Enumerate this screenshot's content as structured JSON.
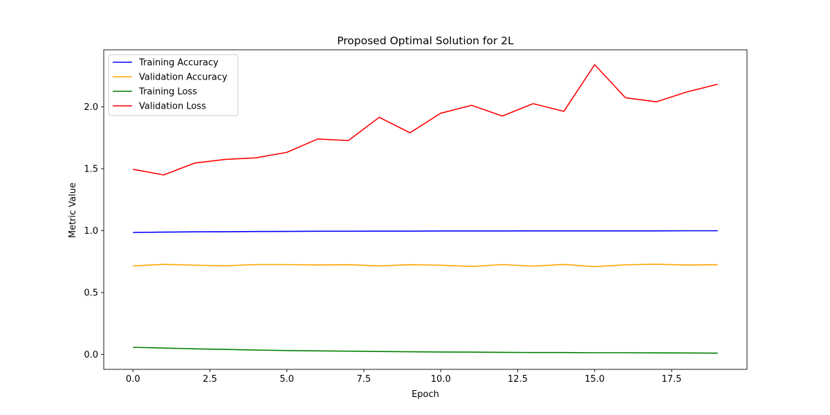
{
  "chart_data": {
    "type": "line",
    "title": "Proposed Optimal Solution for 2L",
    "xlabel": "Epoch",
    "ylabel": "Metric Value",
    "xlim": [
      -0.95,
      19.95
    ],
    "ylim": [
      -0.12,
      2.46
    ],
    "x_ticks": [
      0.0,
      2.5,
      5.0,
      7.5,
      10.0,
      12.5,
      15.0,
      17.5
    ],
    "x_tick_labels": [
      "0.0",
      "2.5",
      "5.0",
      "7.5",
      "10.0",
      "12.5",
      "15.0",
      "17.5"
    ],
    "y_ticks": [
      0.0,
      0.5,
      1.0,
      1.5,
      2.0
    ],
    "y_tick_labels": [
      "0.0",
      "0.5",
      "1.0",
      "1.5",
      "2.0"
    ],
    "grid": false,
    "legend_position": "top-left",
    "x": [
      0,
      1,
      2,
      3,
      4,
      5,
      6,
      7,
      8,
      9,
      10,
      11,
      12,
      13,
      14,
      15,
      16,
      17,
      18,
      19
    ],
    "series": [
      {
        "name": "Training Accuracy",
        "color": "#0000ff",
        "values": [
          0.985,
          0.988,
          0.99,
          0.991,
          0.993,
          0.994,
          0.995,
          0.995,
          0.996,
          0.996,
          0.997,
          0.997,
          0.997,
          0.998,
          0.998,
          0.998,
          0.998,
          0.998,
          0.999,
          0.999
        ]
      },
      {
        "name": "Validation Accuracy",
        "color": "#ffa500",
        "values": [
          0.715,
          0.728,
          0.721,
          0.716,
          0.726,
          0.726,
          0.723,
          0.725,
          0.715,
          0.725,
          0.721,
          0.711,
          0.726,
          0.713,
          0.727,
          0.709,
          0.724,
          0.729,
          0.722,
          0.725
        ]
      },
      {
        "name": "Training Loss",
        "color": "#008000",
        "values": [
          0.058,
          0.052,
          0.046,
          0.041,
          0.036,
          0.032,
          0.029,
          0.027,
          0.024,
          0.022,
          0.02,
          0.019,
          0.017,
          0.016,
          0.016,
          0.014,
          0.014,
          0.013,
          0.012,
          0.011
        ]
      },
      {
        "name": "Validation Loss",
        "color": "#ff0000",
        "values": [
          1.495,
          1.45,
          1.545,
          1.575,
          1.588,
          1.632,
          1.74,
          1.727,
          1.915,
          1.79,
          1.948,
          2.012,
          1.925,
          2.025,
          1.963,
          2.34,
          2.073,
          2.04,
          2.12,
          2.182
        ]
      }
    ]
  }
}
